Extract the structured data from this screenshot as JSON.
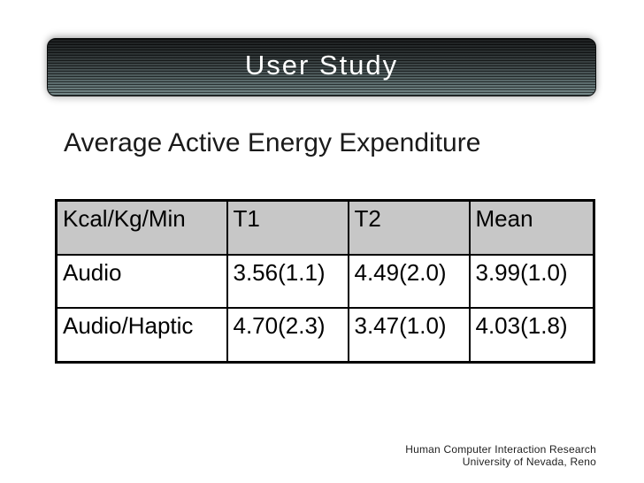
{
  "slide": {
    "title": "User Study",
    "heading": "Average Active Energy Expenditure",
    "footer": {
      "line1": "Human Computer Interaction Research",
      "line2": "University of Nevada, Reno"
    }
  },
  "table": {
    "header": [
      "Kcal/Kg/Min",
      "T1",
      "T2",
      "Mean"
    ],
    "rows": [
      [
        "Audio",
        "3.56(1.1)",
        "4.49(2.0)",
        "3.99(1.0)"
      ],
      [
        "Audio/Haptic",
        "4.70(2.3)",
        "3.47(1.0)",
        "4.03(1.8)"
      ]
    ]
  },
  "chart_data": {
    "type": "table",
    "title": "Average Active Energy Expenditure",
    "columns": [
      "Kcal/Kg/Min",
      "T1",
      "T2",
      "Mean"
    ],
    "rows": [
      [
        "Audio",
        "3.56(1.1)",
        "4.49(2.0)",
        "3.99(1.0)"
      ],
      [
        "Audio/Haptic",
        "4.70(2.3)",
        "3.47(1.0)",
        "4.03(1.8)"
      ]
    ]
  },
  "colors": {
    "title_bar_top": "#17191a",
    "title_bar_bottom": "#728687",
    "title_text": "#ffffff",
    "table_header_bg": "#c7c7c7",
    "table_border": "#000000",
    "body_text": "#1a1a1a",
    "footer_text": "#1f1f1f",
    "background": "#ffffff"
  }
}
